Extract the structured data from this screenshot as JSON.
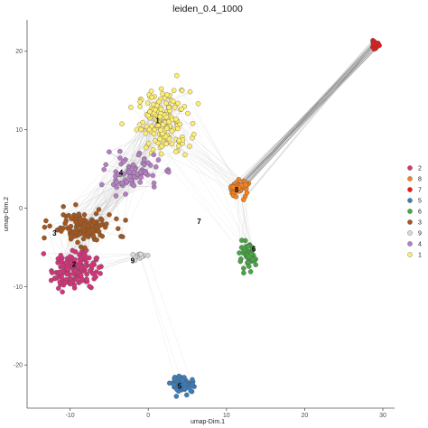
{
  "chart_data": {
    "type": "scatter",
    "title": "leiden_0.4_1000",
    "xlabel": "umap-Dim.1",
    "ylabel": "umap-Dim.2",
    "xlim": [
      -15.5,
      31.5
    ],
    "ylim": [
      -25.5,
      24
    ],
    "x_ticks": [
      -10,
      0,
      10,
      20,
      30
    ],
    "y_ticks": [
      -20,
      -10,
      0,
      10,
      20
    ],
    "grid": false,
    "legend_position": "right",
    "legend": [
      "2",
      "8",
      "7",
      "5",
      "6",
      "3",
      "9",
      "4",
      "1"
    ],
    "clusters": [
      {
        "name": "1",
        "color": "#ffed6f",
        "center": [
          2.0,
          11.0
        ],
        "spread": [
          3.0,
          3.6
        ],
        "count": 170,
        "label_at": [
          1.2,
          10.8
        ]
      },
      {
        "name": "2",
        "color": "#d6337a",
        "center": [
          -9.5,
          -7.8
        ],
        "spread": [
          2.6,
          2.2
        ],
        "count": 150,
        "label_at": [
          -9.5,
          -7.5
        ]
      },
      {
        "name": "3",
        "color": "#a6561c",
        "center": [
          -8.5,
          -2.5
        ],
        "spread": [
          3.5,
          1.8
        ],
        "count": 130,
        "label_at": [
          -12.0,
          -3.5
        ]
      },
      {
        "name": "4",
        "color": "#b57ec3",
        "center": [
          -2.0,
          4.5
        ],
        "spread": [
          3.2,
          2.2
        ],
        "count": 80,
        "label_at": [
          -3.5,
          4.2
        ]
      },
      {
        "name": "5",
        "color": "#3a7ebf",
        "center": [
          4.5,
          -22.5
        ],
        "spread": [
          1.4,
          0.9
        ],
        "count": 70,
        "label_at": [
          4.0,
          -23.0
        ]
      },
      {
        "name": "6",
        "color": "#47a644",
        "center": [
          12.7,
          -6.3
        ],
        "spread": [
          0.9,
          1.4
        ],
        "count": 60,
        "label_at": [
          13.5,
          -5.5
        ]
      },
      {
        "name": "7",
        "color": "#e41a1c",
        "center": [
          29.0,
          20.8
        ],
        "spread": [
          0.5,
          0.4
        ],
        "count": 22,
        "label_at": [
          6.5,
          -2.0
        ]
      },
      {
        "name": "8",
        "color": "#f58220",
        "center": [
          11.5,
          2.5
        ],
        "spread": [
          1.2,
          1.0
        ],
        "count": 45,
        "label_at": [
          11.3,
          2.0
        ]
      },
      {
        "name": "9",
        "color": "#d9d9d9",
        "center": [
          -1.0,
          -6.0
        ],
        "spread": [
          0.8,
          0.5
        ],
        "count": 15,
        "label_at": [
          -2.0,
          -7.0
        ]
      }
    ]
  }
}
